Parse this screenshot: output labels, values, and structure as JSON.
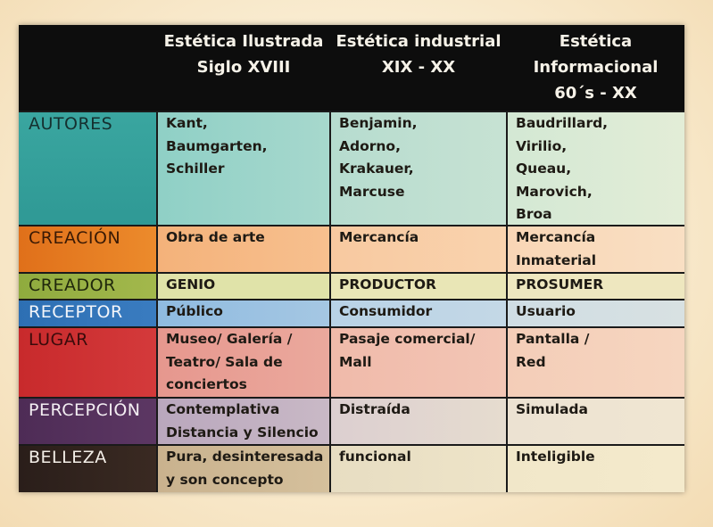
{
  "header": {
    "col1": [
      "Estética Ilustrada",
      "Siglo XVIII"
    ],
    "col2": [
      "Estética industrial",
      "XIX - XX"
    ],
    "col3": [
      "Estética",
      "Informacional",
      "60´s - XX"
    ]
  },
  "rows": [
    {
      "label": "AUTORES",
      "c1": [
        "Kant,",
        "Baumgarten,",
        "Schiller"
      ],
      "c2": [
        "Benjamin,",
        "Adorno,",
        "Krakauer,",
        "Marcuse"
      ],
      "c3": [
        "Baudrillard,",
        "Virilio,",
        "Queau,",
        "Marovich,",
        "Broa"
      ]
    },
    {
      "label": "CREACIÓN",
      "c1": [
        "Obra de arte"
      ],
      "c2": [
        "Mercancía"
      ],
      "c3": [
        "Mercancía",
        "Inmaterial"
      ]
    },
    {
      "label": "CREADOR",
      "c1": [
        "GENIO"
      ],
      "c2": [
        "PRODUCTOR"
      ],
      "c3": [
        "PROSUMER"
      ]
    },
    {
      "label": "RECEPTOR",
      "c1": [
        "Público"
      ],
      "c2": [
        "Consumidor"
      ],
      "c3": [
        "Usuario"
      ]
    },
    {
      "label": "LUGAR",
      "c1": [
        "Museo/ Galería /",
        "Teatro/ Sala de",
        "conciertos"
      ],
      "c2": [
        "Pasaje comercial/",
        "Mall"
      ],
      "c3": [
        "Pantalla /",
        "Red"
      ]
    },
    {
      "label": "PERCEPCIÓN",
      "c1": [
        "Contemplativa",
        "Distancia y Silencio"
      ],
      "c2": [
        "Distraída"
      ],
      "c3": [
        "Simulada"
      ]
    },
    {
      "label": "BELLEZA",
      "c1": [
        "Pura, desinteresada",
        "y son concepto"
      ],
      "c2": [
        "funcional"
      ],
      "c3": [
        "Inteligible"
      ]
    }
  ]
}
